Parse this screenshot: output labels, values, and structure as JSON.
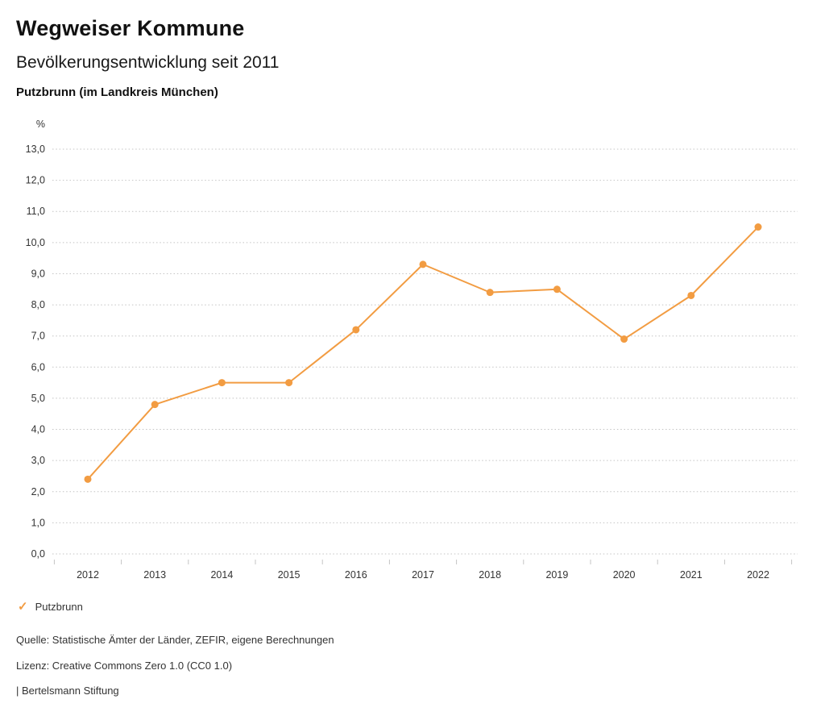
{
  "header": {
    "title": "Wegweiser Kommune",
    "subtitle": "Bevölkerungsentwicklung seit 2011",
    "region": "Putzbrunn (im Landkreis München)"
  },
  "chart_data": {
    "type": "line",
    "x": [
      2012,
      2013,
      2014,
      2015,
      2016,
      2017,
      2018,
      2019,
      2020,
      2021,
      2022
    ],
    "series": [
      {
        "name": "Putzbrunn",
        "values": [
          2.4,
          4.8,
          5.5,
          5.5,
          7.2,
          9.3,
          8.4,
          8.5,
          6.9,
          8.3,
          10.5
        ]
      }
    ],
    "title": "Bevölkerungsentwicklung seit 2011",
    "xlabel": "",
    "ylabel": "%",
    "ylim": [
      0,
      13
    ],
    "ytick_step": 1,
    "ytick_decimal_separator": ",",
    "grid": true,
    "grid_style": "dotted",
    "line_color": "#F29C42",
    "legend_position": "bottom-left"
  },
  "legend": {
    "check_icon": "✓",
    "label": "Putzbrunn"
  },
  "footer": {
    "source": "Quelle: Statistische Ämter der Länder, ZEFIR, eigene Berechnungen",
    "license": "Lizenz: Creative Commons Zero 1.0 (CC0 1.0)",
    "attribution": "| Bertelsmann Stiftung"
  }
}
